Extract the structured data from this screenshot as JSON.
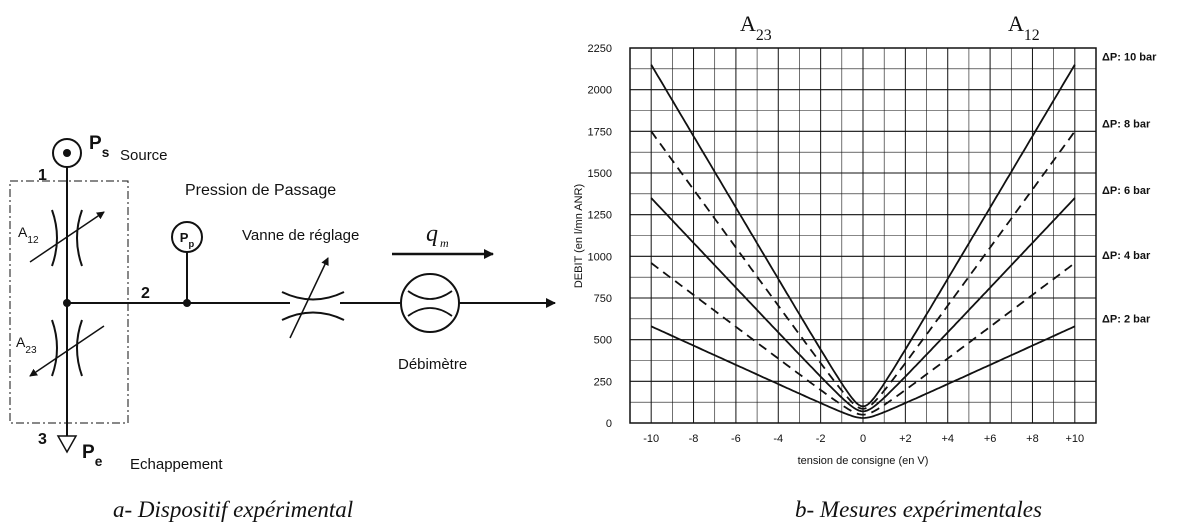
{
  "left_diagram": {
    "node1": "1",
    "node2": "2",
    "node3": "3",
    "ps_label": "Ps",
    "source_label": "Source",
    "pe_label": "Pe",
    "exhaust_label": "Echappement",
    "a12_label": "A12",
    "a23_label": "A23",
    "pp_gauge_label": "Pp",
    "passage_pressure_label": "Pression de Passage",
    "valve_label": "Vanne de réglage",
    "flow_label": "q",
    "flow_subscript": "m",
    "flowmeter_label": "Débimètre",
    "caption": "a- Dispositif expérimental"
  },
  "right_chart": {
    "caption": "b- Mesures expérimentales"
  },
  "chart_data": {
    "type": "line",
    "title_left": "A23",
    "title_right": "A12",
    "xlabel": "tension de consigne (en V)",
    "ylabel": "DEBIT (en l/mn ANR)",
    "xlim": [
      -11,
      11
    ],
    "ylim": [
      0,
      2250
    ],
    "x_tick_labels": [
      "-10",
      "-8",
      "-6",
      "-4",
      "-2",
      "0",
      "+2",
      "+4",
      "+6",
      "+8",
      "+10"
    ],
    "x_tick_values": [
      -10,
      -8,
      -6,
      -4,
      -2,
      0,
      2,
      4,
      6,
      8,
      10
    ],
    "y_ticks": [
      0,
      250,
      500,
      750,
      1000,
      1250,
      1500,
      1750,
      2000,
      2250
    ],
    "grid": true,
    "series": [
      {
        "name": "ΔP: 10 bar",
        "style": "solid",
        "x": [
          -10,
          0,
          10
        ],
        "y": [
          2150,
          100,
          2150
        ]
      },
      {
        "name": "ΔP: 8 bar",
        "style": "dashed",
        "x": [
          -10,
          0,
          10
        ],
        "y": [
          1750,
          85,
          1750
        ]
      },
      {
        "name": "ΔP: 6 bar",
        "style": "solid",
        "x": [
          -10,
          0,
          10
        ],
        "y": [
          1350,
          70,
          1350
        ]
      },
      {
        "name": "ΔP: 4 bar",
        "style": "dashed",
        "x": [
          -10,
          0,
          10
        ],
        "y": [
          960,
          50,
          960
        ]
      },
      {
        "name": "ΔP: 2 bar",
        "style": "solid",
        "x": [
          -10,
          0,
          10
        ],
        "y": [
          580,
          30,
          580
        ]
      }
    ]
  }
}
